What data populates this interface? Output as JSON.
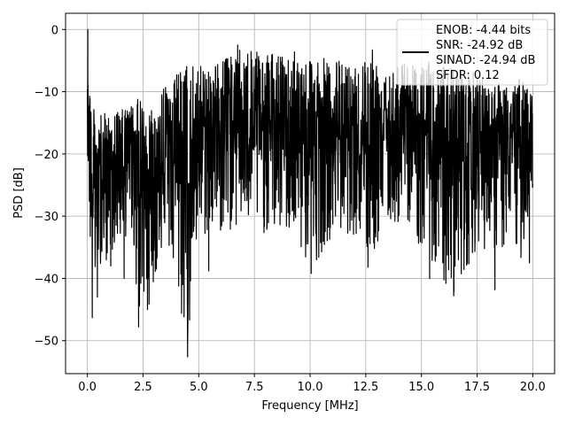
{
  "chart_data": {
    "type": "line",
    "xlabel": "Frequency [MHz]",
    "ylabel": "PSD [dB]",
    "xlim": [
      -0.98,
      20.98
    ],
    "ylim": [
      -55.3,
      2.6
    ],
    "xticks": [
      0.0,
      2.5,
      5.0,
      7.5,
      10.0,
      12.5,
      15.0,
      17.5,
      20.0
    ],
    "xtick_labels": [
      "0.0",
      "2.5",
      "5.0",
      "7.5",
      "10.0",
      "12.5",
      "15.0",
      "17.5",
      "20.0"
    ],
    "yticks": [
      0,
      -10,
      -20,
      -30,
      -40,
      -50
    ],
    "ytick_labels": [
      "0",
      "−10",
      "−20",
      "−30",
      "−40",
      "−50"
    ],
    "grid": true,
    "legend": {
      "placement": "top-right",
      "entries": [
        "ENOB: -4.44 bits",
        "SNR: -24.92 dB",
        "SINAD: -24.94 dB",
        "SFDR: 0.12"
      ]
    },
    "series": [
      {
        "color": "#000000",
        "envelope": [
          {
            "x": 0.0,
            "upper": 0.0,
            "lower": -19.0
          },
          {
            "x": 0.2,
            "upper": -12.0,
            "lower": -46.0
          },
          {
            "x": 0.5,
            "upper": -14.0,
            "lower": -38.0
          },
          {
            "x": 1.0,
            "upper": -13.0,
            "lower": -36.0
          },
          {
            "x": 1.5,
            "upper": -13.0,
            "lower": -34.0
          },
          {
            "x": 2.0,
            "upper": -12.0,
            "lower": -33.0
          },
          {
            "x": 2.3,
            "upper": -11.0,
            "lower": -47.0
          },
          {
            "x": 2.8,
            "upper": -12.0,
            "lower": -44.0
          },
          {
            "x": 3.5,
            "upper": -9.0,
            "lower": -33.0
          },
          {
            "x": 4.5,
            "upper": -5.0,
            "lower": -52.5
          },
          {
            "x": 5.0,
            "upper": -6.0,
            "lower": -34.0
          },
          {
            "x": 6.0,
            "upper": -5.0,
            "lower": -33.0
          },
          {
            "x": 7.0,
            "upper": -3.0,
            "lower": -32.0
          },
          {
            "x": 8.0,
            "upper": -4.0,
            "lower": -33.0
          },
          {
            "x": 9.0,
            "upper": -4.0,
            "lower": -33.0
          },
          {
            "x": 10.0,
            "upper": -4.0,
            "lower": -39.0
          },
          {
            "x": 11.0,
            "upper": -5.0,
            "lower": -33.0
          },
          {
            "x": 12.0,
            "upper": -5.0,
            "lower": -33.0
          },
          {
            "x": 12.6,
            "upper": -4.0,
            "lower": -38.0
          },
          {
            "x": 13.5,
            "upper": -5.0,
            "lower": -32.0
          },
          {
            "x": 14.5,
            "upper": -5.0,
            "lower": -31.0
          },
          {
            "x": 15.3,
            "upper": -5.0,
            "lower": -40.0
          },
          {
            "x": 16.5,
            "upper": -6.0,
            "lower": -42.5
          },
          {
            "x": 17.5,
            "upper": -7.0,
            "lower": -35.0
          },
          {
            "x": 18.5,
            "upper": -8.0,
            "lower": -36.0
          },
          {
            "x": 19.5,
            "upper": -8.0,
            "lower": -37.0
          },
          {
            "x": 20.0,
            "upper": -9.0,
            "lower": -26.0
          }
        ],
        "spikes": [
          {
            "x": 0.02,
            "y": 0.0
          },
          {
            "x": 0.22,
            "y": -46.3
          },
          {
            "x": 0.45,
            "y": -43.0
          },
          {
            "x": 0.85,
            "y": -37.0
          },
          {
            "x": 1.05,
            "y": -38.0
          },
          {
            "x": 1.65,
            "y": -40.0
          },
          {
            "x": 2.3,
            "y": -47.8
          },
          {
            "x": 2.7,
            "y": -45.0
          },
          {
            "x": 3.1,
            "y": -38.5
          },
          {
            "x": 4.5,
            "y": -52.6
          },
          {
            "x": 5.45,
            "y": -38.8
          },
          {
            "x": 10.05,
            "y": -39.2
          },
          {
            "x": 12.6,
            "y": -38.2
          },
          {
            "x": 16.1,
            "y": -40.8
          },
          {
            "x": 16.45,
            "y": -42.8
          },
          {
            "x": 18.3,
            "y": -41.8
          },
          {
            "x": 19.85,
            "y": -37.5
          },
          {
            "x": 6.75,
            "y": -2.5
          },
          {
            "x": 9.3,
            "y": -3.6
          },
          {
            "x": 12.8,
            "y": -3.3
          }
        ]
      }
    ]
  }
}
